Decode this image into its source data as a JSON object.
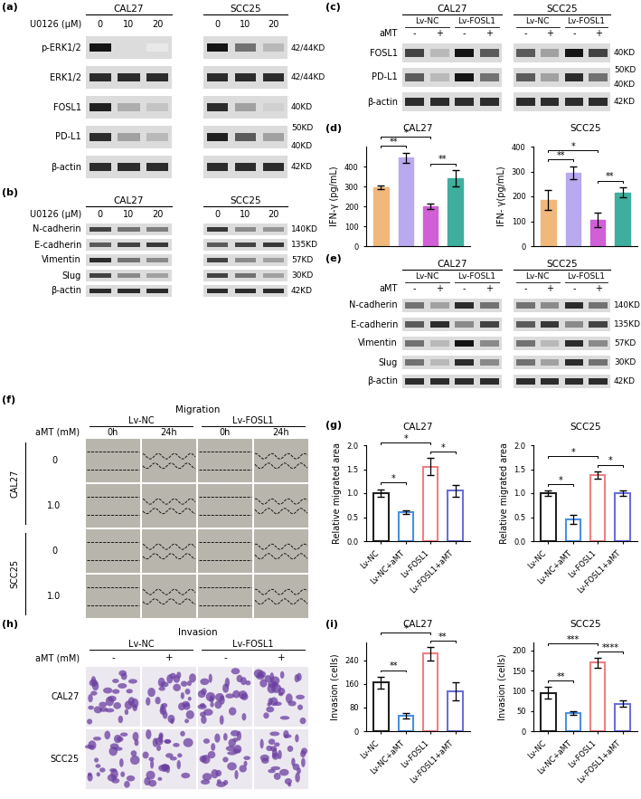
{
  "panel_labels": [
    "(a)",
    "(b)",
    "(c)",
    "(d)",
    "(e)",
    "(f)",
    "(g)",
    "(h)",
    "(i)"
  ],
  "blots": {
    "a": {
      "treatment_label": "U0126 (μM)",
      "groups": [
        {
          "name": "CAL27",
          "lanes": [
            "0",
            "10",
            "20"
          ]
        },
        {
          "name": "SCC25",
          "lanes": [
            "0",
            "10",
            "20"
          ]
        }
      ],
      "rows": [
        {
          "name": "p-ERK1/2",
          "size": [
            "42/44KD"
          ],
          "intensity": [
            1.0,
            0.15,
            0.1,
            1.0,
            0.6,
            0.3
          ]
        },
        {
          "name": "ERK1/2",
          "size": [
            "42/44KD"
          ],
          "intensity": [
            0.9,
            0.9,
            0.9,
            0.9,
            0.9,
            0.9
          ]
        },
        {
          "name": "FOSL1",
          "size": [
            "40KD"
          ],
          "intensity": [
            0.95,
            0.35,
            0.25,
            0.9,
            0.4,
            0.2
          ]
        },
        {
          "name": "PD-L1",
          "size": [
            "50KD",
            "40KD"
          ],
          "intensity": [
            0.9,
            0.4,
            0.3,
            0.95,
            0.7,
            0.4
          ]
        },
        {
          "name": "β-actin",
          "size": [
            "42KD"
          ],
          "intensity": [
            0.9,
            0.9,
            0.9,
            0.9,
            0.9,
            0.9
          ]
        }
      ]
    },
    "b": {
      "treatment_label": "U0126 (μM)",
      "groups": [
        {
          "name": "CAL27",
          "lanes": [
            "0",
            "10",
            "20"
          ]
        },
        {
          "name": "SCC25",
          "lanes": [
            "0",
            "10",
            "20"
          ]
        }
      ],
      "rows": [
        {
          "name": "N-cadherin",
          "size": [
            "140KD"
          ],
          "intensity": [
            0.8,
            0.6,
            0.55,
            0.85,
            0.5,
            0.45
          ]
        },
        {
          "name": "E-cadherin",
          "size": [
            "135KD"
          ],
          "intensity": [
            0.7,
            0.8,
            0.85,
            0.7,
            0.8,
            0.85
          ]
        },
        {
          "name": "Vimentin",
          "size": [
            "57KD"
          ],
          "intensity": [
            0.9,
            0.6,
            0.5,
            0.8,
            0.5,
            0.4
          ]
        },
        {
          "name": "Slug",
          "size": [
            "30KD"
          ],
          "intensity": [
            0.8,
            0.5,
            0.4,
            0.8,
            0.6,
            0.4
          ]
        },
        {
          "name": "β-actin",
          "size": [
            "42KD"
          ],
          "intensity": [
            0.9,
            0.9,
            0.9,
            0.9,
            0.9,
            0.9
          ]
        }
      ]
    },
    "c": {
      "treatment_label": "aMT",
      "groups": [
        {
          "name": "CAL27",
          "subgroups": [
            {
              "name": "Lv-NC",
              "lanes": [
                "-",
                "+"
              ]
            },
            {
              "name": "Lv-FOSL1",
              "lanes": [
                "-",
                "+"
              ]
            }
          ]
        },
        {
          "name": "SCC25",
          "subgroups": [
            {
              "name": "Lv-NC",
              "lanes": [
                "-",
                "+"
              ]
            },
            {
              "name": "Lv-FOSL1",
              "lanes": [
                "-",
                "+"
              ]
            }
          ]
        }
      ],
      "rows": [
        {
          "name": "FOSL1",
          "size": [
            "40KD"
          ],
          "intensity": [
            0.8,
            0.3,
            1.0,
            0.7,
            0.7,
            0.4,
            1.0,
            0.8
          ]
        },
        {
          "name": "PD-L1",
          "size": [
            "50KD",
            "40KD"
          ],
          "intensity": [
            0.7,
            0.3,
            1.0,
            0.6,
            0.7,
            0.4,
            0.9,
            0.6
          ]
        },
        {
          "name": "β-actin",
          "size": [
            "42KD"
          ],
          "intensity": [
            0.9,
            0.9,
            0.9,
            0.9,
            0.9,
            0.9,
            0.9,
            0.9
          ]
        }
      ]
    },
    "e": {
      "treatment_label": "aMT",
      "groups": [
        {
          "name": "CAL27",
          "subgroups": [
            {
              "name": "Lv-NC",
              "lanes": [
                "-",
                "+"
              ]
            },
            {
              "name": "Lv-FOSL1",
              "lanes": [
                "-",
                "+"
              ]
            }
          ]
        },
        {
          "name": "SCC25",
          "subgroups": [
            {
              "name": "Lv-NC",
              "lanes": [
                "-",
                "+"
              ]
            },
            {
              "name": "Lv-FOSL1",
              "lanes": [
                "-",
                "+"
              ]
            }
          ]
        }
      ],
      "rows": [
        {
          "name": "N-cadherin",
          "size": [
            "140KD"
          ],
          "intensity": [
            0.6,
            0.4,
            0.9,
            0.6,
            0.6,
            0.5,
            0.9,
            0.6
          ]
        },
        {
          "name": "E-cadherin",
          "size": [
            "135KD"
          ],
          "intensity": [
            0.7,
            0.9,
            0.5,
            0.8,
            0.7,
            0.85,
            0.5,
            0.8
          ]
        },
        {
          "name": "Vimentin",
          "size": [
            "57KD"
          ],
          "intensity": [
            0.6,
            0.3,
            1.0,
            0.5,
            0.6,
            0.3,
            0.9,
            0.5
          ]
        },
        {
          "name": "Slug",
          "size": [
            "30KD"
          ],
          "intensity": [
            0.6,
            0.3,
            0.9,
            0.5,
            0.6,
            0.4,
            0.9,
            0.6
          ]
        },
        {
          "name": "β-actin",
          "size": [
            "42KD"
          ],
          "intensity": [
            0.9,
            0.9,
            0.9,
            0.9,
            0.9,
            0.9,
            0.9,
            0.9
          ]
        }
      ]
    }
  },
  "migration": {
    "title": "Migration",
    "groups": [
      "Lv-NC",
      "Lv-FOSL1"
    ],
    "times": [
      "0h",
      "24h"
    ],
    "treatment_label": "aMT (mM)",
    "cell_lines": [
      {
        "name": "CAL27",
        "doses": [
          "0",
          "1.0"
        ]
      },
      {
        "name": "SCC25",
        "doses": [
          "0",
          "1.0"
        ]
      }
    ]
  },
  "invasion": {
    "title": "Invasion",
    "groups": [
      "Lv-NC",
      "Lv-FOSL1"
    ],
    "treatment_label": "aMT (mM)",
    "lanes": [
      "-",
      "+"
    ],
    "cell_lines": [
      "CAL27",
      "SCC25"
    ]
  },
  "chart_data": [
    {
      "type": "bar",
      "title": "CAL27",
      "y_label": "IFN-γ (pg/mL)",
      "categories": [
        null,
        null,
        null,
        null
      ],
      "values": [
        295,
        445,
        200,
        340
      ],
      "errors": [
        10,
        25,
        15,
        40
      ],
      "colors": [
        "#F0B87A",
        "#B9A9EE",
        "#D15FD6",
        "#3FAE9E"
      ],
      "ylim": [
        0,
        500
      ],
      "yticks": [
        0,
        100,
        200,
        300,
        400
      ],
      "tick_labels": "y",
      "comparisons": [
        {
          "from": 0,
          "to": 1,
          "label": "**"
        },
        {
          "from": 0,
          "to": 2,
          "label": "*"
        },
        {
          "from": 2,
          "to": 3,
          "label": "**"
        }
      ]
    },
    {
      "type": "bar",
      "title": "SCC25",
      "y_label": "IFN- γ(pg/mL)",
      "categories": [
        null,
        null,
        null,
        null
      ],
      "values": [
        185,
        295,
        105,
        215
      ],
      "errors": [
        40,
        25,
        30,
        20
      ],
      "colors": [
        "#F0B87A",
        "#B9A9EE",
        "#D15FD6",
        "#3FAE9E"
      ],
      "ylim": [
        0,
        400
      ],
      "yticks": [
        0,
        100,
        200,
        300,
        400
      ],
      "tick_labels": "y",
      "comparisons": [
        {
          "from": 0,
          "to": 1,
          "label": "**"
        },
        {
          "from": 0,
          "to": 2,
          "label": "*"
        },
        {
          "from": 2,
          "to": 3,
          "label": "**"
        }
      ]
    },
    {
      "type": "bar",
      "title": "CAL27",
      "y_label": "Relative migrated area",
      "categories": [
        "Lv-NC",
        "Lv-NC+aMT",
        "Lv-FOSL1",
        "Lv-FOSL1+aMT"
      ],
      "values": [
        1.0,
        0.6,
        1.55,
        1.05
      ],
      "errors": [
        0.08,
        0.04,
        0.18,
        0.12
      ],
      "colors": [
        "#222222",
        "#4A90E2",
        "#F08080",
        "#6A6FD8"
      ],
      "ylim": [
        0,
        2
      ],
      "yticks": [
        {
          "value": 0,
          "label": "0.0"
        },
        0.5,
        {
          "value": 1,
          "label": "1.0"
        },
        1.5,
        {
          "value": 2,
          "label": "2.0"
        }
      ],
      "comparisons": [
        {
          "from": 0,
          "to": 1,
          "label": "*"
        },
        {
          "from": 0,
          "to": 2,
          "label": "*"
        },
        {
          "from": 2,
          "to": 3,
          "label": "*"
        }
      ]
    },
    {
      "type": "bar",
      "title": "SCC25",
      "y_label": "Relative migrated area",
      "categories": [
        "Lv-NC",
        "Lv-NC+aMT",
        "Lv-FOSL1",
        "Lv-FOSL1+aMT"
      ],
      "values": [
        1.0,
        0.45,
        1.38,
        1.0
      ],
      "errors": [
        0.05,
        0.1,
        0.07,
        0.05
      ],
      "colors": [
        "#222222",
        "#4A90E2",
        "#F08080",
        "#6A6FD8"
      ],
      "ylim": [
        0,
        2
      ],
      "yticks": [
        {
          "value": 0,
          "label": "0.0"
        },
        0.5,
        {
          "value": 1,
          "label": "1.0"
        },
        1.5,
        {
          "value": 2,
          "label": "2.0"
        }
      ],
      "comparisons": [
        {
          "from": 0,
          "to": 1,
          "label": "*"
        },
        {
          "from": 0,
          "to": 2,
          "label": "*"
        },
        {
          "from": 2,
          "to": 3,
          "label": "*"
        }
      ]
    },
    {
      "type": "bar",
      "title": "CAL27",
      "y_label": "Invasion (cells)",
      "categories": [
        "Lv-NC",
        "Lv-NC+aMT",
        "Lv-FOSL1",
        "Lv-FOSL1+aMT"
      ],
      "values": [
        165,
        52,
        262,
        135
      ],
      "errors": [
        20,
        8,
        22,
        30
      ],
      "colors": [
        "#222222",
        "#4A90E2",
        "#F08080",
        "#6A6FD8"
      ],
      "ylim": [
        0,
        300
      ],
      "yticks": [
        0,
        80,
        160,
        240
      ],
      "comparisons": [
        {
          "from": 0,
          "to": 1,
          "label": "**"
        },
        {
          "from": 0,
          "to": 2,
          "label": "*"
        },
        {
          "from": 2,
          "to": 3,
          "label": "**"
        }
      ]
    },
    {
      "type": "bar",
      "title": "SCC25",
      "y_label": "Invasion (cells)",
      "categories": [
        "Lv-NC",
        "Lv-NC+aMT",
        "Lv-FOSL1",
        "Lv-FOSL1+aMT"
      ],
      "values": [
        95,
        45,
        170,
        68
      ],
      "errors": [
        15,
        5,
        12,
        8
      ],
      "colors": [
        "#222222",
        "#4A90E2",
        "#F08080",
        "#6A6FD8"
      ],
      "ylim": [
        0,
        220
      ],
      "yticks": [
        0,
        50,
        100,
        150,
        200
      ],
      "comparisons": [
        {
          "from": 0,
          "to": 1,
          "label": "**"
        },
        {
          "from": 0,
          "to": 2,
          "label": "***"
        },
        {
          "from": 2,
          "to": 3,
          "label": "****"
        }
      ]
    }
  ]
}
